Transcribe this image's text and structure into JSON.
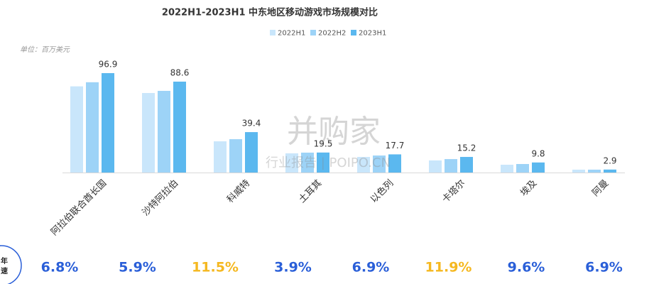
{
  "chart_data": {
    "type": "bar",
    "title": "2022H1-2023H1  中东地区移动游戏市场规模对比",
    "unit": "单位：百万美元",
    "categories": [
      "阿拉伯联合酋长国",
      "沙特阿拉伯",
      "科威特",
      "土耳其",
      "以色列",
      "卡塔尔",
      "埃及",
      "阿曼"
    ],
    "series": [
      {
        "name": "2022H1",
        "color": "#c9e6fb",
        "values": [
          84,
          77.5,
          30.4,
          18.7,
          15.2,
          11.8,
          7.6,
          2.8
        ]
      },
      {
        "name": "2022H2",
        "color": "#9dd3f7",
        "values": [
          88,
          79.6,
          32.5,
          19.4,
          16.6,
          13.1,
          8.3,
          2.8
        ]
      },
      {
        "name": "2023H1",
        "color": "#5bb8ef",
        "values": [
          96.9,
          88.6,
          39.4,
          19.5,
          17.7,
          15.2,
          9.8,
          2.9
        ],
        "labeled": true
      }
    ],
    "growth": {
      "values": [
        6.8,
        5.9,
        11.5,
        3.9,
        6.9,
        11.9,
        9.6,
        6.9
      ],
      "value_labels": [
        "6.8%",
        "5.9%",
        "11.5%",
        "3.9%",
        "6.9%",
        "11.9%",
        "9.6%",
        "6.9%"
      ],
      "colors": [
        "#2a5fd8",
        "#2a5fd8",
        "#f5b820",
        "#2a5fd8",
        "#2a5fd8",
        "#f5b820",
        "#2a5fd8",
        "#2a5fd8"
      ]
    },
    "badge": [
      "年",
      "速"
    ],
    "watermark": [
      "并购家",
      "行业报告 | POIPO.CN"
    ]
  }
}
